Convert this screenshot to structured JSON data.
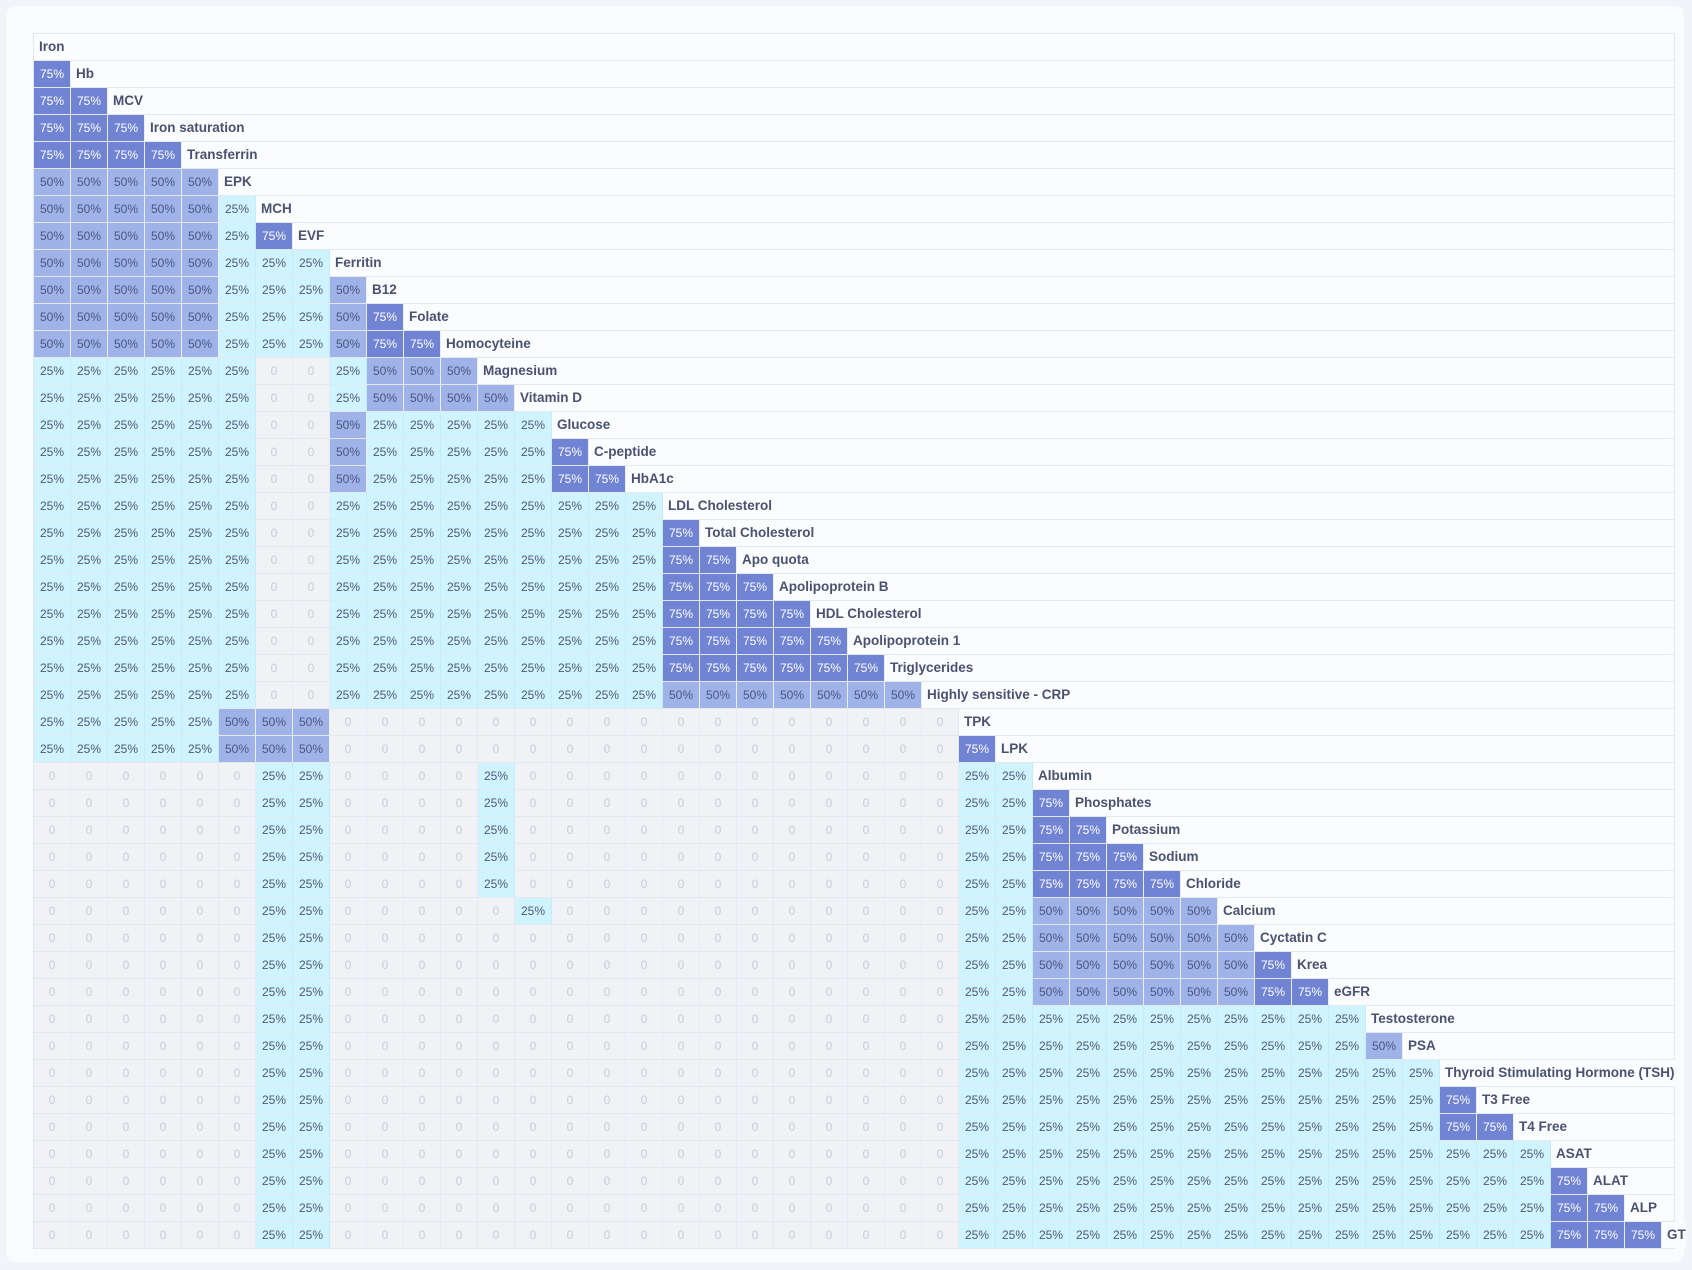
{
  "colors": {
    "p75": "#7184d4",
    "p50": "#9fb3e8",
    "p25": "#cff4fd",
    "p0": "#f0f2f6"
  },
  "matrix": {
    "labels": [
      "Iron",
      "Hb",
      "MCV",
      "Iron saturation",
      "Transferrin",
      "EPK",
      "MCH",
      "EVF",
      "Ferritin",
      "B12",
      "Folate",
      "Homocyteine",
      "Magnesium",
      "Vitamin D",
      "Glucose",
      "C-peptide",
      "HbA1c",
      "LDL Cholesterol",
      "Total Cholesterol",
      "Apo quota",
      "Apolipoprotein B",
      "HDL Cholesterol",
      "Apolipoprotein 1",
      "Triglycerides",
      "Highly sensitive - CRP",
      "TPK",
      "LPK",
      "Albumin",
      "Phosphates",
      "Potassium",
      "Sodium",
      "Chloride",
      "Calcium",
      "Cyctatin C",
      "Krea",
      "eGFR",
      "Testosterone",
      "PSA",
      "Thyroid Stimulating Hormone (TSH)",
      "T3 Free",
      "T4 Free",
      "ASAT",
      "ALAT",
      "ALP",
      "GT"
    ],
    "rows": [
      "",
      "3",
      "33",
      "333",
      "3333",
      "22222",
      "222221",
      "2222213",
      "22222111",
      "222221112",
      "2222211123",
      "22222111233",
      "111111001222",
      "1111110012222",
      "11111100211111",
      "111111002111113",
      "1111110021111133",
      "11111100111111111",
      "111111001111111113",
      "1111110011111111133",
      "11111100111111111333",
      "111111001111111113333",
      "1111110011111111133333",
      "11111100111111111333333",
      "111111001111111112222222",
      "1111122200000000000000000",
      "11111222000000000000000003",
      "000000110000100000000000011",
      "0000001100001000000000000113",
      "00000011000010000000000001133",
      "000000110000100000000000011333",
      "0000001100001000000000000113333",
      "00000011000001000000000001122222",
      "000000110000000000000000011222222",
      "0000001100000000000000000112222223",
      "00000011000000000000000001122222233",
      "000000110000000000000000011111111111",
      "0000001100000000000000000111111111112",
      "00000011000000000000000001111111111111",
      "000000110000000000000000011111111111113",
      "0000001100000000000000000111111111111133",
      "00000011000000000000000001111111111111111",
      "000000110000000000000000011111111111111113",
      "0000001100000000000000000111111111111111133",
      "00000011000000000000000001111111111111111333"
    ],
    "value_levels": [
      "0",
      "25%",
      "50%",
      "75%"
    ]
  }
}
